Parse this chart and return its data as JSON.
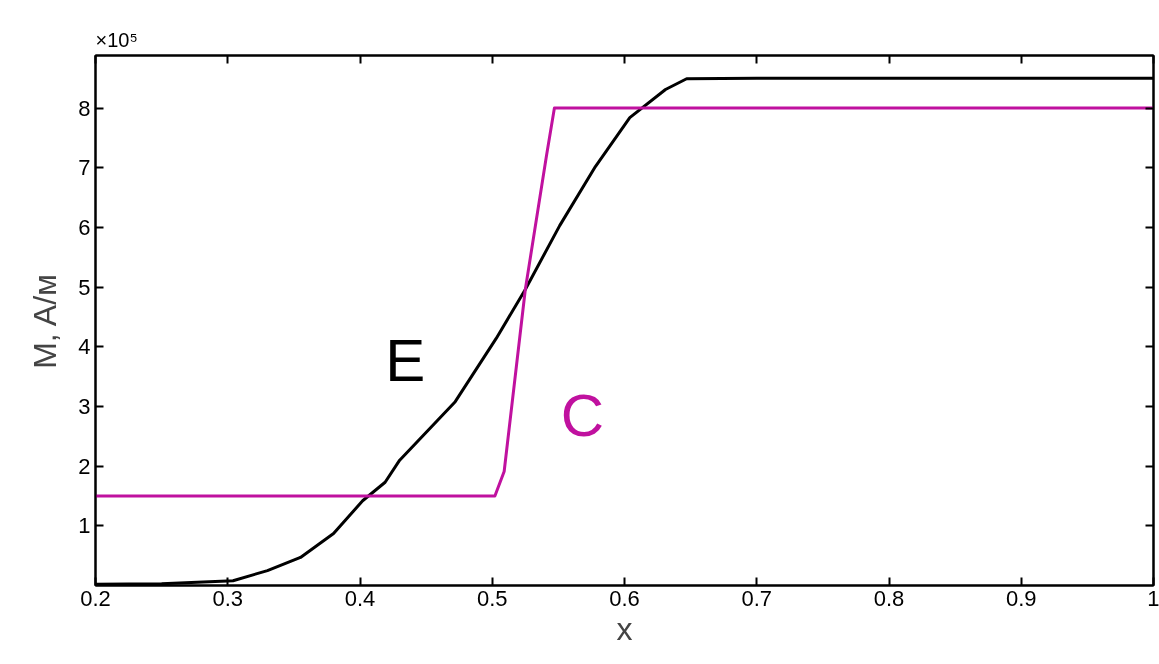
{
  "chart_data": {
    "type": "line",
    "xlabel": "x",
    "ylabel": "M, A/м",
    "xlim": [
      0.2,
      1
    ],
    "xticks": [
      0.2,
      0.3,
      0.4,
      0.5,
      0.6,
      0.7,
      0.8,
      0.9,
      1
    ],
    "ylim": [
      0,
      8.88
    ],
    "yticks": [
      1,
      2,
      3,
      4,
      5,
      6,
      7,
      8
    ],
    "grid": false,
    "line_style": "solid",
    "marker": "none",
    "series": [
      {
        "name": "E",
        "color": "#000000",
        "x": [
          0.2,
          0.25,
          0.304,
          0.33,
          0.355,
          0.38,
          0.402,
          0.419,
          0.43,
          0.472,
          0.503,
          0.525,
          0.551,
          0.578,
          0.604,
          0.631,
          0.647,
          0.7,
          0.8,
          0.9,
          1
        ],
        "values": [
          0.02,
          0.03,
          0.08,
          0.25,
          0.47,
          0.87,
          1.42,
          1.73,
          2.1,
          3.08,
          4.14,
          4.96,
          6.03,
          7.02,
          7.84,
          8.31,
          8.49,
          8.5,
          8.5,
          8.5,
          8.5
        ]
      },
      {
        "name": "C",
        "color": "#c0119f",
        "x": [
          0.2,
          0.3,
          0.4,
          0.5,
          0.502,
          0.509,
          0.525,
          0.541,
          0.547,
          0.6,
          0.7,
          0.8,
          0.9,
          1
        ],
        "values": [
          1.5,
          1.5,
          1.5,
          1.5,
          1.5,
          1.91,
          4.96,
          7.2,
          8.0,
          8.0,
          8.0,
          8.0,
          8.0,
          8.0
        ]
      }
    ],
    "annotations": [
      "×10⁵"
    ]
  }
}
